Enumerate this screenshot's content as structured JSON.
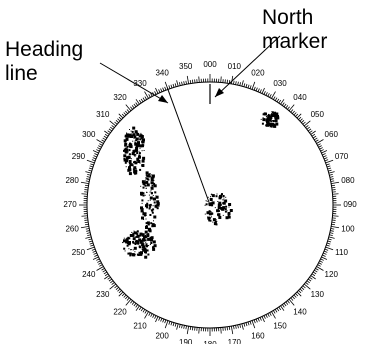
{
  "callouts": {
    "heading_line": [
      "Heading",
      "line"
    ],
    "north_marker": [
      "North",
      "marker"
    ]
  },
  "bearing_scale": {
    "labels": [
      "000",
      "010",
      "020",
      "030",
      "040",
      "050",
      "060",
      "070",
      "080",
      "090",
      "100",
      "110",
      "120",
      "130",
      "140",
      "150",
      "160",
      "170",
      "180",
      "190",
      "200",
      "210",
      "220",
      "230",
      "240",
      "250",
      "260",
      "270",
      "280",
      "290",
      "300",
      "310",
      "320",
      "330",
      "340",
      "350"
    ]
  },
  "heading_line": {
    "bearing_deg": 340
  },
  "colors": {
    "ink": "#000000",
    "background": "#ffffff"
  }
}
